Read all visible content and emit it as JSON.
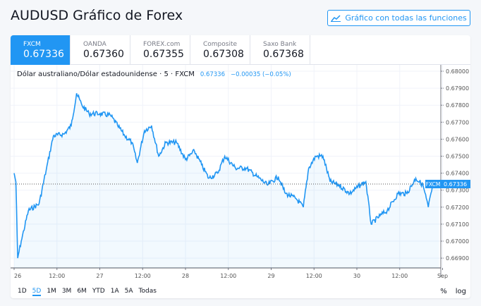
{
  "header": {
    "title": "AUDUSD Gráfico de Forex",
    "full_chart_button": "Gráfico con todas las funciones",
    "button_icon": "chart-line-icon"
  },
  "tabs": [
    {
      "name": "FXCM",
      "value": "0.67336",
      "active": true
    },
    {
      "name": "OANDA",
      "value": "0.67360"
    },
    {
      "name": "FOREX.com",
      "value": "0.67355"
    },
    {
      "name": "Composite",
      "value": "0.67308"
    },
    {
      "name": "Saxo Bank",
      "value": "0.67368"
    }
  ],
  "legend": {
    "symbol": "Dólar australiano/Dólar estadounidense · 5 · FXCM",
    "price": "0.67336",
    "change": "−0.00035 (−0.05%)"
  },
  "ranges": [
    {
      "label": "1D"
    },
    {
      "label": "5D",
      "active": true
    },
    {
      "label": "1M"
    },
    {
      "label": "3M"
    },
    {
      "label": "6M"
    },
    {
      "label": "YTD"
    },
    {
      "label": "1A"
    },
    {
      "label": "5A"
    },
    {
      "label": "Todas"
    }
  ],
  "controls": {
    "percent": "%",
    "log": "log"
  },
  "colors": {
    "accent": "#2196f3",
    "line": "#2196f3"
  },
  "chart_data": {
    "type": "area",
    "y_ticks": [
      "0.68000",
      "0.67900",
      "0.67800",
      "0.67700",
      "0.67600",
      "0.67500",
      "0.67400",
      "0.67300",
      "0.67200",
      "0.67100",
      "0.67000",
      "0.66900"
    ],
    "ylim": [
      0.6689,
      0.6801
    ],
    "x_ticks": [
      "26",
      "12:00",
      "27",
      "12:00",
      "28",
      "12:00",
      "29",
      "12:00",
      "30",
      "12:00",
      "Sep"
    ],
    "last_price_label": "FXCM",
    "last_price": "0.67336",
    "grid": true,
    "points": [
      [
        "26 00:00",
        0.674
      ],
      [
        "26 00:30",
        0.6735
      ],
      [
        "26 01:00",
        0.669
      ],
      [
        "26 02:00",
        0.67
      ],
      [
        "26 04:00",
        0.6718
      ],
      [
        "26 07:00",
        0.6722
      ],
      [
        "26 09:00",
        0.6742
      ],
      [
        "26 11:00",
        0.6762
      ],
      [
        "26 14:00",
        0.6763
      ],
      [
        "26 16:00",
        0.6768
      ],
      [
        "26 17:30",
        0.6787
      ],
      [
        "26 19:00",
        0.678
      ],
      [
        "26 21:00",
        0.6775
      ],
      [
        "27 00:00",
        0.6775
      ],
      [
        "27 03:00",
        0.6774
      ],
      [
        "27 05:00",
        0.6768
      ],
      [
        "27 07:00",
        0.6762
      ],
      [
        "27 09:00",
        0.6758
      ],
      [
        "27 10:30",
        0.6746
      ],
      [
        "27 12:30",
        0.6765
      ],
      [
        "27 14:30",
        0.6768
      ],
      [
        "27 16:30",
        0.675
      ],
      [
        "27 18:30",
        0.6758
      ],
      [
        "27 21:30",
        0.6758
      ],
      [
        "28 00:00",
        0.6748
      ],
      [
        "28 02:30",
        0.6753
      ],
      [
        "28 04:30",
        0.6745
      ],
      [
        "28 06:30",
        0.6737
      ],
      [
        "28 09:00",
        0.674
      ],
      [
        "28 11:00",
        0.675
      ],
      [
        "28 14:00",
        0.6743
      ],
      [
        "28 17:00",
        0.6743
      ],
      [
        "28 20:00",
        0.6738
      ],
      [
        "28 23:00",
        0.6733
      ],
      [
        "29 02:00",
        0.6738
      ],
      [
        "29 04:00",
        0.6728
      ],
      [
        "29 07:00",
        0.6725
      ],
      [
        "29 09:00",
        0.672
      ],
      [
        "29 10:30",
        0.6743
      ],
      [
        "29 12:30",
        0.675
      ],
      [
        "29 14:30",
        0.675
      ],
      [
        "29 16:30",
        0.6735
      ],
      [
        "29 19:00",
        0.6733
      ],
      [
        "29 22:00",
        0.6728
      ],
      [
        "30 01:00",
        0.6733
      ],
      [
        "30 02:30",
        0.6735
      ],
      [
        "30 04:00",
        0.671
      ],
      [
        "30 06:30",
        0.6715
      ],
      [
        "30 08:30",
        0.6718
      ],
      [
        "30 11:30",
        0.6728
      ],
      [
        "30 14:00",
        0.6728
      ],
      [
        "30 16:30",
        0.6737
      ],
      [
        "30 18:30",
        0.6733
      ],
      [
        "30 20:00",
        0.672
      ],
      [
        "30 21:30",
        0.6735
      ],
      [
        "30 23:00",
        0.67336
      ]
    ]
  }
}
